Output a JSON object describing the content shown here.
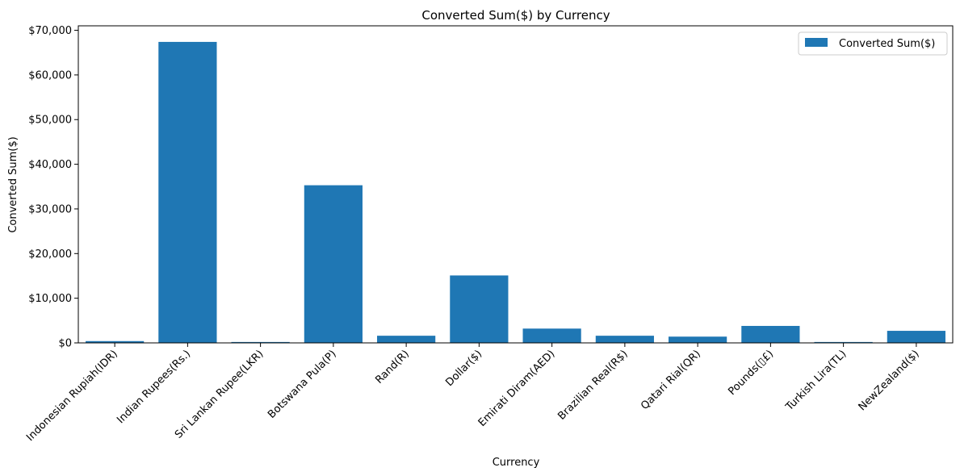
{
  "chart_data": {
    "type": "bar",
    "title": "Converted Sum($) by Currency",
    "xlabel": "Currency",
    "ylabel": "Converted Sum($)",
    "ylim": [
      0,
      71000
    ],
    "yticks": [
      0,
      10000,
      20000,
      30000,
      40000,
      50000,
      60000,
      70000
    ],
    "ytick_labels": [
      "$0",
      "$10,000",
      "$20,000",
      "$30,000",
      "$40,000",
      "$50,000",
      "$60,000",
      "$70,000"
    ],
    "categories": [
      "Indonesian Rupiah(IDR)",
      "Indian Rupees(Rs.)",
      "Sri Lankan Rupee(LKR)",
      "Botswana Pula(P)",
      "Rand(R)",
      "Dollar($)",
      "Emirati Diram(AED)",
      "Brazilian Real(R$)",
      "Qatari Rial(QR)",
      "Pounds(▯£)",
      "Turkish Lira(TL)",
      "NewZealand($)"
    ],
    "series": [
      {
        "name": "Converted Sum($)",
        "color": "#1f77b4",
        "values": [
          400,
          67400,
          200,
          35300,
          1600,
          15100,
          3200,
          1600,
          1400,
          3800,
          200,
          2700
        ]
      }
    ],
    "legend": "top-right",
    "grid": false
  }
}
